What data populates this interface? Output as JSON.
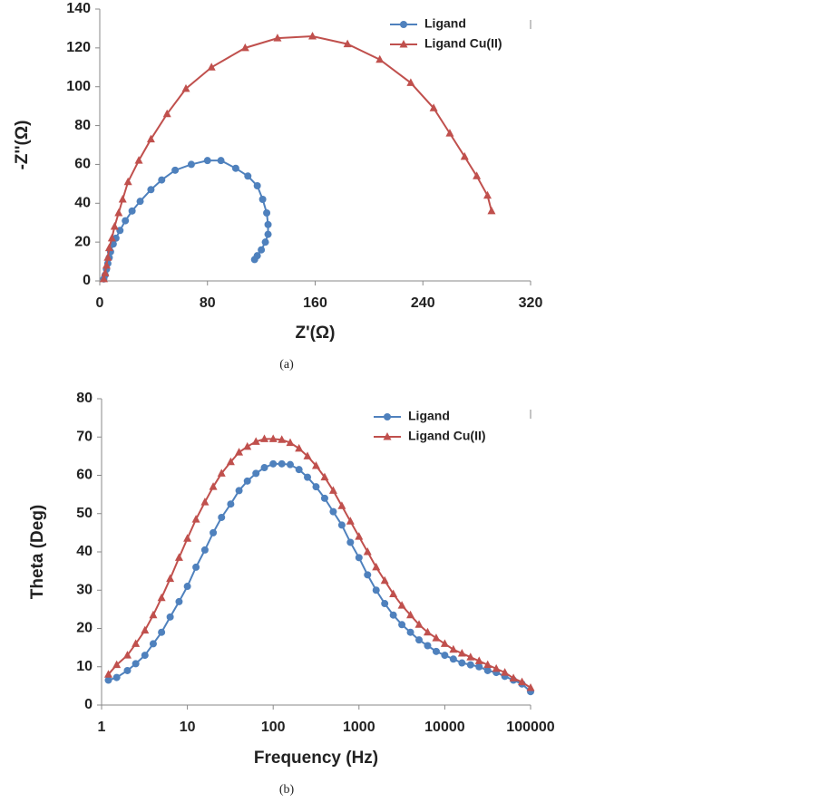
{
  "chart_data": [
    {
      "type": "line",
      "x_label": "Z'(Ω)",
      "y_label": "-Z''(Ω)",
      "caption": "(a)",
      "xlim": [
        0,
        320
      ],
      "xticks": [
        0,
        80,
        160,
        240,
        320
      ],
      "ylim": [
        0,
        140
      ],
      "yticks": [
        0,
        20,
        40,
        60,
        80,
        100,
        120,
        140
      ],
      "legend": "top-right",
      "series": [
        {
          "name": "Ligand",
          "color": "#4f81bd",
          "marker": "circle",
          "x": [
            3,
            4,
            5,
            6,
            7,
            8,
            10,
            12,
            15,
            19,
            24,
            30,
            38,
            46,
            56,
            68,
            80,
            90,
            101,
            110,
            117,
            121,
            124,
            125,
            125,
            123,
            120,
            117,
            115
          ],
          "values": [
            1,
            3,
            6,
            9,
            12,
            15,
            19,
            22,
            26,
            31,
            36,
            41,
            47,
            52,
            57,
            60,
            62,
            62,
            58,
            54,
            49,
            42,
            35,
            29,
            24,
            20,
            16,
            13,
            11
          ]
        },
        {
          "name": "Ligand Cu(II)",
          "color": "#c0504d",
          "marker": "triangle",
          "x": [
            3,
            4,
            5,
            6,
            7,
            9,
            11,
            14,
            17,
            21,
            29,
            38,
            50,
            64,
            83,
            108,
            132,
            158,
            184,
            208,
            231,
            248,
            260,
            271,
            280,
            288,
            291
          ],
          "values": [
            1,
            4,
            8,
            12,
            17,
            22,
            28,
            35,
            42,
            51,
            62,
            73,
            86,
            99,
            110,
            120,
            125,
            126,
            122,
            114,
            102,
            89,
            76,
            64,
            54,
            44,
            36
          ]
        }
      ]
    },
    {
      "type": "line",
      "x_label": "Frequency (Hz)",
      "y_label": "Theta (Deg)",
      "caption": "(b)",
      "x_log": true,
      "xlim": [
        1,
        100000
      ],
      "xticks": [
        1,
        10,
        100,
        1000,
        10000,
        100000
      ],
      "ylim": [
        0,
        80
      ],
      "yticks": [
        0,
        10,
        20,
        30,
        40,
        50,
        60,
        70,
        80
      ],
      "legend": "top-right",
      "series": [
        {
          "name": "Ligand",
          "color": "#4f81bd",
          "marker": "circle",
          "x": [
            1.2,
            1.5,
            2,
            2.5,
            3.2,
            4,
            5,
            6.3,
            8,
            10,
            12.6,
            16,
            20,
            25,
            32,
            40,
            50,
            63,
            79,
            100,
            126,
            158,
            200,
            251,
            316,
            398,
            501,
            631,
            794,
            1000,
            1259,
            1585,
            1995,
            2512,
            3162,
            3981,
            5012,
            6310,
            7943,
            10000,
            12589,
            15849,
            19953,
            25119,
            31623,
            39811,
            50119,
            63096,
            79433,
            100000
          ],
          "values": [
            6.5,
            7.2,
            9,
            10.8,
            13,
            16,
            19,
            23,
            27,
            31,
            36,
            40.5,
            45,
            49,
            52.5,
            56,
            58.5,
            60.5,
            62,
            63,
            63,
            62.8,
            61.5,
            59.5,
            57,
            54,
            50.5,
            47,
            42.5,
            38.5,
            34,
            30,
            26.5,
            23.5,
            21,
            19,
            17,
            15.5,
            14,
            13,
            12,
            11,
            10.5,
            10,
            9,
            8.5,
            7.5,
            6.5,
            5.5,
            3.5
          ]
        },
        {
          "name": "Ligand Cu(II)",
          "color": "#c0504d",
          "marker": "triangle",
          "x": [
            1.2,
            1.5,
            2,
            2.5,
            3.2,
            4,
            5,
            6.3,
            8,
            10,
            12.6,
            16,
            20,
            25,
            32,
            40,
            50,
            63,
            79,
            100,
            126,
            158,
            200,
            251,
            316,
            398,
            501,
            631,
            794,
            1000,
            1259,
            1585,
            1995,
            2512,
            3162,
            3981,
            5012,
            6310,
            7943,
            10000,
            12589,
            15849,
            19953,
            25119,
            31623,
            39811,
            50119,
            63096,
            79433,
            100000
          ],
          "values": [
            8,
            10.5,
            13,
            16,
            19.5,
            23.5,
            28,
            33,
            38.5,
            43.5,
            48.5,
            53,
            57,
            60.5,
            63.5,
            66,
            67.5,
            68.8,
            69.5,
            69.5,
            69.3,
            68.5,
            67,
            65,
            62.5,
            59.5,
            56,
            52,
            48,
            44,
            40,
            36,
            32.5,
            29,
            26,
            23.5,
            21,
            19,
            17.5,
            16,
            14.5,
            13.5,
            12.5,
            11.5,
            10.5,
            9.5,
            8.5,
            7,
            6,
            4.5
          ]
        }
      ]
    }
  ]
}
